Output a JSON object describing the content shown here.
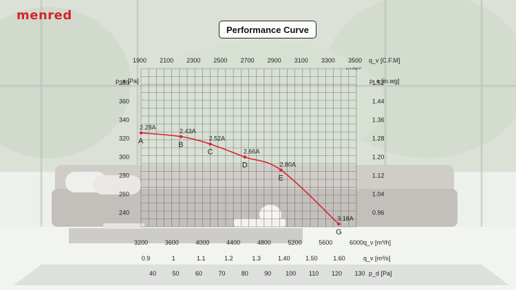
{
  "brand": {
    "logo": "menred"
  },
  "chart_data": {
    "type": "line",
    "title": "Performance Curve",
    "top_axis": {
      "label": "q_v [C.F.M]",
      "ticks": [
        1900,
        2100,
        2300,
        2500,
        2700,
        2900,
        3100,
        3300,
        3500
      ]
    },
    "density_note": "ρ=1.2kg/m³",
    "left_axis": {
      "label": "p_e [Pa]",
      "ticks": [
        240,
        260,
        280,
        300,
        320,
        340,
        360,
        380
      ],
      "ylim": [
        225,
        395
      ]
    },
    "right_axis": {
      "label": "p_e [in.wg]",
      "ticks": [
        "0.96",
        "1.04",
        "1.12",
        "1.20",
        "1.28",
        "1.36",
        "1.44",
        "1.52"
      ]
    },
    "bottom_axis_1": {
      "label": "q_v [m³/h]",
      "ticks": [
        3200,
        3600,
        4000,
        4400,
        4800,
        5200,
        5600,
        6000
      ],
      "xlim": [
        3200,
        6000
      ]
    },
    "bottom_axis_2": {
      "label": "q_v [m³/s]",
      "ticks": [
        "0.9",
        "1",
        "1.1",
        "1.2",
        "1.3",
        "1.40",
        "1.50",
        "1.60"
      ]
    },
    "bottom_axis_3": {
      "label": "p_d [Pa]",
      "ticks": [
        40,
        50,
        60,
        70,
        80,
        90,
        100,
        110,
        120,
        130
      ]
    },
    "series": [
      {
        "color": "#d8232a",
        "points": [
          {
            "x": 3200,
            "y": 326,
            "point": "A",
            "current": "2.28A"
          },
          {
            "x": 3720,
            "y": 322,
            "point": "B",
            "current": "2.43A"
          },
          {
            "x": 4100,
            "y": 314,
            "point": "C",
            "current": "2.52A"
          },
          {
            "x": 4550,
            "y": 300,
            "point": "D",
            "current": "2.66A"
          },
          {
            "x": 5020,
            "y": 286,
            "point": "E",
            "current": "2.80A"
          },
          {
            "x": 5770,
            "y": 228,
            "point": "G",
            "current": "3.18A"
          }
        ]
      }
    ],
    "grid": true
  }
}
